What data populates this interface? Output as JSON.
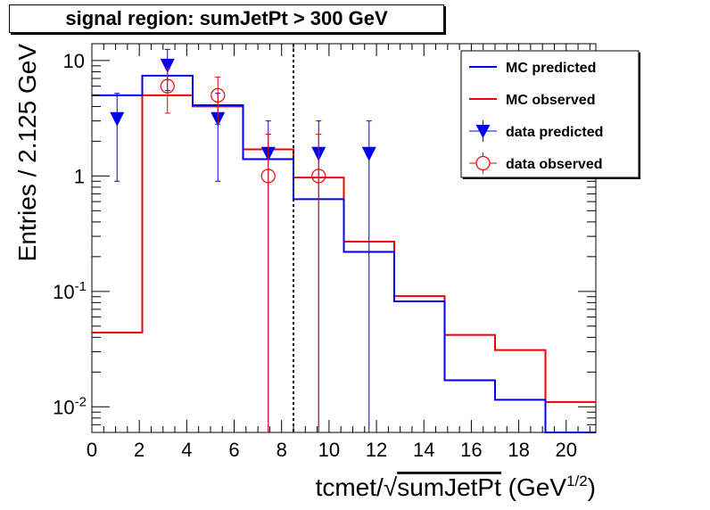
{
  "chart_data": {
    "type": "step-histogram",
    "title": "signal region: sumJetPt > 300 GeV",
    "xlabel": "tcmet/√sumJetPt (GeV^1/2)",
    "xlabel_parts": {
      "main": "tcmet/",
      "sqrt_symbol": "√",
      "under_root": "sumJetPt",
      "unit_open": " (GeV",
      "unit_exp": "1/2",
      "unit_close": ")"
    },
    "ylabel": "Entries / 2.125 GeV",
    "xlim": [
      0,
      21.25
    ],
    "ylim": [
      0.006,
      14
    ],
    "y_scale": "log",
    "x_ticks": [
      "0",
      "2",
      "4",
      "6",
      "8",
      "10",
      "12",
      "14",
      "16",
      "18",
      "20"
    ],
    "y_ticks": [
      {
        "value": 0.01,
        "base": "10",
        "exp": "-2"
      },
      {
        "value": 0.1,
        "base": "10",
        "exp": "-1"
      },
      {
        "value": 1,
        "base": "1",
        "exp": ""
      },
      {
        "value": 10,
        "base": "10",
        "exp": ""
      }
    ],
    "bin_edges": [
      0,
      2.125,
      4.25,
      6.375,
      8.5,
      10.625,
      12.75,
      14.875,
      17.0,
      19.125,
      21.25
    ],
    "cut_line_x": 8.5,
    "series": [
      {
        "name": "MC predicted",
        "kind": "hist",
        "color": "#0000ee",
        "values": [
          5.0,
          7.4,
          4.1,
          1.4,
          0.63,
          0.22,
          0.082,
          0.017,
          0.0115,
          0.0055
        ]
      },
      {
        "name": "MC observed",
        "kind": "hist",
        "color": "#ee0000",
        "values": [
          0.044,
          5.0,
          4.0,
          1.7,
          0.97,
          0.27,
          0.091,
          0.042,
          0.031,
          0.011
        ]
      },
      {
        "name": "data predicted",
        "kind": "points",
        "marker": "triangle-down",
        "color": "#0000ee",
        "points": [
          {
            "x": 1.0625,
            "y": 3.1,
            "low": 0.9,
            "high": 5.2
          },
          {
            "x": 3.1875,
            "y": 9.0,
            "low": 5.5,
            "high": 12.5
          },
          {
            "x": 5.3125,
            "y": 3.1,
            "low": 0.9,
            "high": 5.2
          },
          {
            "x": 7.4375,
            "y": 1.55,
            "low": 0.0,
            "high": 3.0
          },
          {
            "x": 9.5625,
            "y": 1.55,
            "low": 0.0,
            "high": 3.0
          },
          {
            "x": 11.6875,
            "y": 1.55,
            "low": 0.0,
            "high": 3.0
          }
        ]
      },
      {
        "name": "data observed",
        "kind": "points",
        "marker": "open-circle",
        "color": "#ee0000",
        "points": [
          {
            "x": 3.1875,
            "y": 6.0,
            "low": 3.5,
            "high": 8.5
          },
          {
            "x": 5.3125,
            "y": 5.0,
            "low": 2.8,
            "high": 7.2
          },
          {
            "x": 7.4375,
            "y": 1.0,
            "low": 0.0,
            "high": 2.3
          },
          {
            "x": 9.5625,
            "y": 1.0,
            "low": 0.0,
            "high": 2.3
          }
        ]
      }
    ],
    "legend": {
      "placement": "top-right"
    }
  }
}
